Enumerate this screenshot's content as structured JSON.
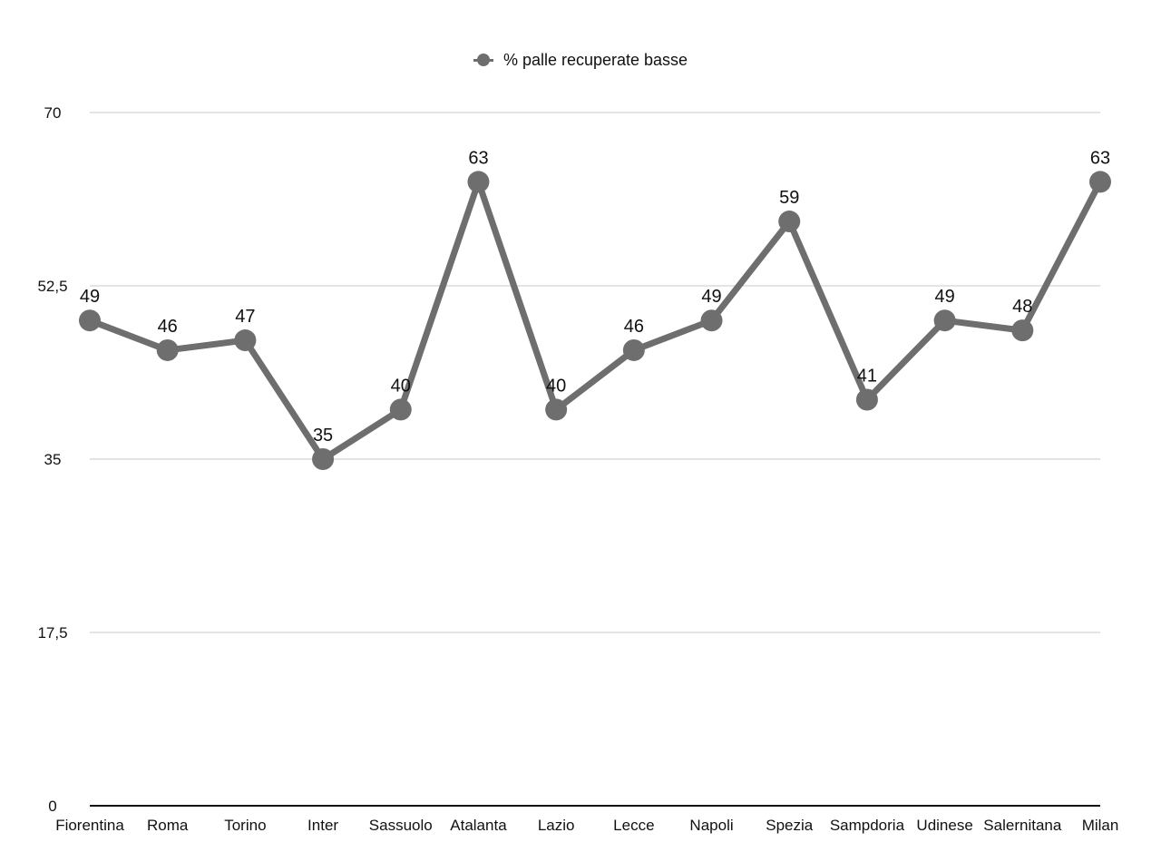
{
  "chart_data": {
    "type": "line",
    "categories": [
      "Fiorentina",
      "Roma",
      "Torino",
      "Inter",
      "Sassuolo",
      "Atalanta",
      "Lazio",
      "Lecce",
      "Napoli",
      "Spezia",
      "Sampdoria",
      "Udinese",
      "Salernitana",
      "Milan"
    ],
    "series": [
      {
        "name": "% palle recuperate basse",
        "values": [
          49,
          46,
          47,
          35,
          40,
          63,
          40,
          46,
          49,
          59,
          41,
          49,
          48,
          63
        ],
        "color": "#6e6e6e"
      }
    ],
    "ylim": [
      0,
      70
    ],
    "yticks": [
      0,
      17.5,
      35,
      52.5,
      70
    ],
    "ytick_labels": [
      "0",
      "17,5",
      "35",
      "52,5",
      "70"
    ],
    "grid": true,
    "legend_position": "top-center",
    "title": "",
    "xlabel": "",
    "ylabel": ""
  }
}
